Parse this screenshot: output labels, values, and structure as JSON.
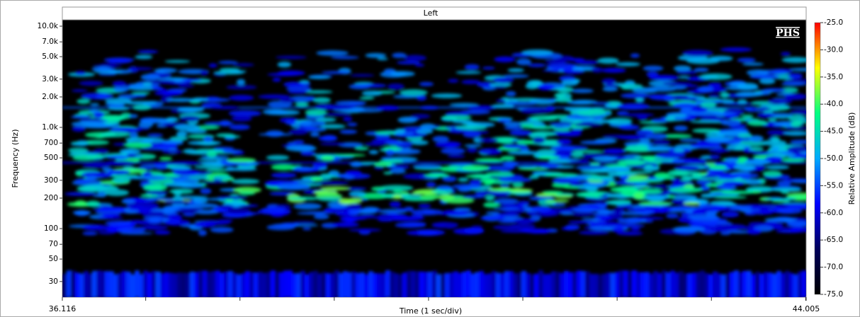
{
  "chart_data": {
    "type": "spectrogram",
    "title": "Left",
    "watermark": "PHS",
    "x_label": "Time (1 sec/div)",
    "y_label": "Frequency (Hz)",
    "colorbar_label": "Relative Amplitude (dB)",
    "xlim": [
      36.116,
      44.005
    ],
    "xticks": [
      36.116,
      44.005
    ],
    "x_minor_ticks": [
      37,
      38,
      39,
      40,
      41,
      42,
      43,
      44
    ],
    "ylim": [
      21,
      11560
    ],
    "log_y": true,
    "yticks": [
      {
        "value": 10000,
        "label": "10.0k"
      },
      {
        "value": 7000,
        "label": "7.0k"
      },
      {
        "value": 5000,
        "label": "5.0k"
      },
      {
        "value": 3000,
        "label": "3.0k"
      },
      {
        "value": 2000,
        "label": "2.0k"
      },
      {
        "value": 1000,
        "label": "1.0k"
      },
      700,
      500,
      300,
      200,
      100,
      70,
      50,
      30
    ],
    "clim": [
      -75,
      -25
    ],
    "cticks": [
      {
        "value": -25,
        "label": "-25.0"
      },
      {
        "value": -30,
        "label": "-30.0"
      },
      {
        "value": -35,
        "label": "-35.0"
      },
      {
        "value": -40,
        "label": "-40.0"
      },
      {
        "value": -45,
        "label": "-45.0"
      },
      {
        "value": -50,
        "label": "-50.0"
      },
      {
        "value": -55,
        "label": "-55.0"
      },
      {
        "value": -60,
        "label": "-60.0"
      },
      {
        "value": -65,
        "label": "-65.0"
      },
      {
        "value": -70,
        "label": "-70.0"
      },
      {
        "value": -75,
        "label": "-75.0"
      }
    ],
    "colormap": [
      "#000000",
      "#00005a",
      "#0000ff",
      "#00aaff",
      "#00ff80",
      "#ffff00",
      "#ff0000"
    ]
  }
}
